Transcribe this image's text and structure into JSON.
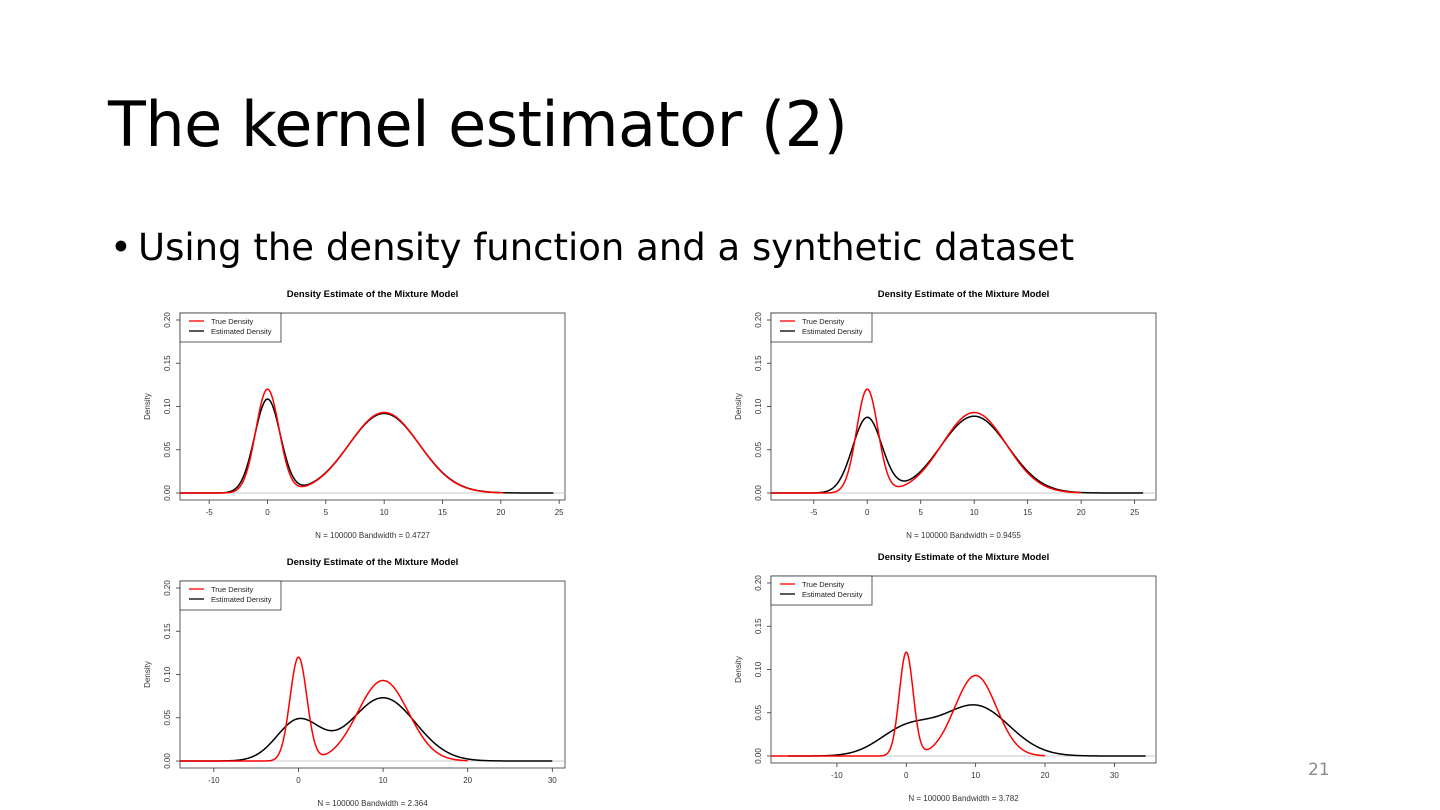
{
  "slide": {
    "title": "The kernel estimator (2)",
    "bullet": "Using the density function and a synthetic dataset",
    "bullet_marker": "•",
    "page_number": "21"
  },
  "colors": {
    "true_density": "#ff0000",
    "estimated_density": "#000000",
    "axis": "#333333",
    "baseline": "#c8c8c8"
  },
  "chart_data": [
    {
      "type": "line",
      "title": "Density Estimate of the Mixture Model",
      "xlabel": "N = 100000   Bandwidth = 0.4727",
      "ylabel": "Density",
      "xlim": [
        -7.5,
        25.5
      ],
      "ylim": [
        0,
        0.2
      ],
      "xticks": [
        -5,
        0,
        5,
        10,
        15,
        20,
        25
      ],
      "yticks": [
        "0.00",
        "0.05",
        "0.10",
        "0.15",
        "0.20"
      ],
      "grid": false,
      "legend": "top-left",
      "legend_entries": [
        "True Density",
        "Estimated Density"
      ],
      "bandwidth": 0.4727,
      "mixture": [
        {
          "weight": 0.3,
          "mean": 0,
          "sd": 1
        },
        {
          "weight": 0.7,
          "mean": 10,
          "sd": 3
        }
      ],
      "series": [
        {
          "name": "True Density",
          "x_range": [
            -7.5,
            20.2
          ]
        },
        {
          "name": "Estimated Density",
          "x_range": [
            -7.5,
            24.5
          ]
        }
      ]
    },
    {
      "type": "line",
      "title": "Density Estimate of the Mixture Model",
      "xlabel": "N = 100000   Bandwidth = 0.9455",
      "ylabel": "Density",
      "xlim": [
        -9,
        27
      ],
      "ylim": [
        0,
        0.2
      ],
      "xticks": [
        -5,
        0,
        5,
        10,
        15,
        20,
        25
      ],
      "yticks": [
        "0.00",
        "0.05",
        "0.10",
        "0.15",
        "0.20"
      ],
      "grid": false,
      "legend": "top-left",
      "legend_entries": [
        "True Density",
        "Estimated Density"
      ],
      "bandwidth": 0.9455,
      "mixture": [
        {
          "weight": 0.3,
          "mean": 0,
          "sd": 1
        },
        {
          "weight": 0.7,
          "mean": 10,
          "sd": 3
        }
      ],
      "series": [
        {
          "name": "True Density",
          "x_range": [
            -9,
            20
          ]
        },
        {
          "name": "Estimated Density",
          "x_range": [
            -9,
            25.8
          ]
        }
      ]
    },
    {
      "type": "line",
      "title": "Density Estimate of the Mixture Model",
      "xlabel": "N = 100000   Bandwidth = 2.364",
      "ylabel": "Density",
      "xlim": [
        -14,
        31.5
      ],
      "ylim": [
        0,
        0.2
      ],
      "xticks": [
        -10,
        0,
        10,
        20,
        30
      ],
      "yticks": [
        "0.00",
        "0.05",
        "0.10",
        "0.15",
        "0.20"
      ],
      "grid": false,
      "legend": "top-left",
      "legend_entries": [
        "True Density",
        "Estimated Density"
      ],
      "bandwidth": 2.364,
      "mixture": [
        {
          "weight": 0.3,
          "mean": 0,
          "sd": 1
        },
        {
          "weight": 0.7,
          "mean": 10,
          "sd": 3
        }
      ],
      "series": [
        {
          "name": "True Density",
          "x_range": [
            -14,
            20
          ]
        },
        {
          "name": "Estimated Density",
          "x_range": [
            -14,
            30
          ]
        }
      ]
    },
    {
      "type": "line",
      "title": "Density Estimate of the Mixture Model",
      "xlabel": "N = 100000   Bandwidth = 3.782",
      "ylabel": "Density",
      "xlim": [
        -19.5,
        36
      ],
      "ylim": [
        0,
        0.2
      ],
      "xticks": [
        -10,
        0,
        10,
        20,
        30
      ],
      "yticks": [
        "0.00",
        "0.05",
        "0.10",
        "0.15",
        "0.20"
      ],
      "grid": false,
      "legend": "top-left",
      "legend_entries": [
        "True Density",
        "Estimated Density"
      ],
      "bandwidth": 3.782,
      "mixture": [
        {
          "weight": 0.3,
          "mean": 0,
          "sd": 1
        },
        {
          "weight": 0.7,
          "mean": 10,
          "sd": 3
        }
      ],
      "series": [
        {
          "name": "True Density",
          "x_range": [
            -19.5,
            20
          ]
        },
        {
          "name": "Estimated Density",
          "x_range": [
            -17,
            34.5
          ]
        }
      ]
    }
  ]
}
